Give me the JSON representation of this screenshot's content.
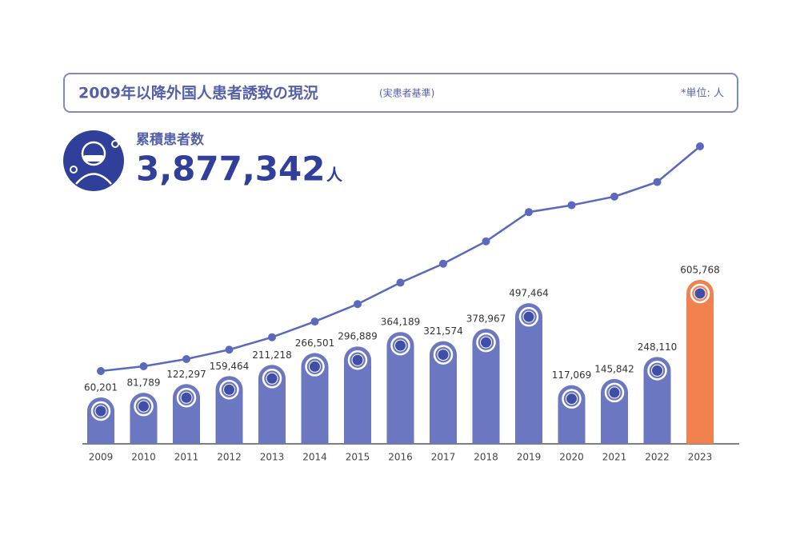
{
  "chart_data": {
    "type": "bar",
    "title": "2009年以降外国人患者誘致の現況",
    "subtitle": "(実患者基準)",
    "unit_note": "*単位: 人",
    "total_title": "累積患者数",
    "total": {
      "value": 3877342,
      "label": "3,877,342"
    },
    "total_unit": "人",
    "categories": [
      "2009",
      "2010",
      "2011",
      "2012",
      "2013",
      "2014",
      "2015",
      "2016",
      "2017",
      "2018",
      "2019",
      "2020",
      "2021",
      "2022",
      "2023"
    ],
    "values": [
      60201,
      81789,
      122297,
      159464,
      211218,
      266501,
      296889,
      364189,
      321574,
      378967,
      497464,
      117069,
      145842,
      248110,
      605768
    ],
    "value_labels": [
      "60,201",
      "81,789",
      "122,297",
      "159,464",
      "211,218",
      "266,501",
      "296,889",
      "364,189",
      "321,574",
      "378,967",
      "497,464",
      "117,069",
      "145,842",
      "248,110",
      "605,768"
    ],
    "bar_colors": [
      "#6b77c1",
      "#6b77c1",
      "#6b77c1",
      "#6b77c1",
      "#6b77c1",
      "#6b77c1",
      "#6b77c1",
      "#6b77c1",
      "#6b77c1",
      "#6b77c1",
      "#6b77c1",
      "#6b77c1",
      "#6b77c1",
      "#6b77c1",
      "#f08250"
    ],
    "cumulative_line_color": "#5b69bd"
  }
}
